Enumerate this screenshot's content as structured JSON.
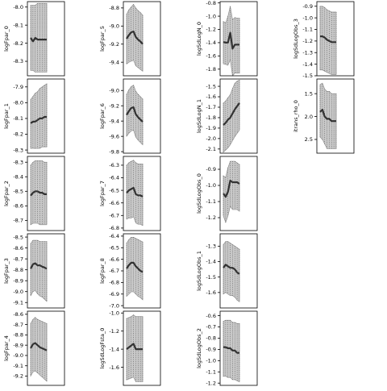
{
  "chart_data": [
    {
      "type": "line",
      "ylabel": "logFpar_0",
      "yticks": [
        -8.0,
        -8.1,
        -8.2,
        -8.3
      ],
      "yticklabels": [
        "-8.0",
        "-8.1",
        "-8.2",
        "-8.3"
      ],
      "ylim": [
        -7.97,
        -8.38
      ],
      "x": [
        1,
        2,
        3,
        4,
        5,
        6,
        7,
        8
      ],
      "series": [
        {
          "values": [
            -8.17,
            -8.19,
            -8.17,
            -8.18,
            -8.18,
            -8.18,
            -8.18,
            -8.18
          ]
        }
      ],
      "band": {
        "upper": [
          -7.99,
          -7.99,
          -7.99,
          -7.98,
          -7.98,
          -7.98,
          -7.98,
          -7.98
        ],
        "lower": [
          -8.35,
          -8.35,
          -8.36,
          -8.36,
          -8.36,
          -8.36,
          -8.36,
          -8.36
        ]
      }
    },
    {
      "type": "line",
      "ylabel": "logFpar_1",
      "yticks": [
        -7.9,
        -8.0,
        -8.1,
        -8.2,
        -8.3
      ],
      "yticklabels": [
        "-7.9",
        "-8.0",
        "-8.1",
        "-8.2",
        "-8.3"
      ],
      "ylim": [
        -7.85,
        -8.32
      ],
      "x": [
        1,
        2,
        3,
        4,
        5,
        6,
        7,
        8
      ],
      "series": [
        {
          "values": [
            -8.13,
            -8.12,
            -8.12,
            -8.11,
            -8.1,
            -8.1,
            -8.09,
            -8.09
          ]
        }
      ],
      "band": {
        "upper": [
          -7.98,
          -7.96,
          -7.94,
          -7.93,
          -7.91,
          -7.9,
          -7.89,
          -7.88
        ],
        "lower": [
          -8.29,
          -8.29,
          -8.29,
          -8.29,
          -8.29,
          -8.28,
          -8.28,
          -8.28
        ]
      }
    },
    {
      "type": "line",
      "ylabel": "logFpar_2",
      "yticks": [
        -8.3,
        -8.4,
        -8.5,
        -8.6,
        -8.7
      ],
      "yticklabels": [
        "-8.3",
        "-8.4",
        "-8.5",
        "-8.6",
        "-8.7"
      ],
      "ylim": [
        -8.26,
        -8.77
      ],
      "x": [
        1,
        2,
        3,
        4,
        5,
        6,
        7,
        8
      ],
      "series": [
        {
          "values": [
            -8.53,
            -8.51,
            -8.5,
            -8.5,
            -8.51,
            -8.51,
            -8.52,
            -8.52
          ]
        }
      ],
      "band": {
        "upper": [
          -8.32,
          -8.3,
          -8.29,
          -8.29,
          -8.29,
          -8.29,
          -8.3,
          -8.3
        ],
        "lower": [
          -8.73,
          -8.72,
          -8.72,
          -8.72,
          -8.73,
          -8.73,
          -8.73,
          -8.73
        ]
      }
    },
    {
      "type": "line",
      "ylabel": "logFpar_3",
      "yticks": [
        -8.5,
        -8.6,
        -8.7,
        -8.8,
        -8.9,
        -9.0,
        -9.1
      ],
      "yticklabels": [
        "-8.5",
        "-8.6",
        "-8.7",
        "-8.8",
        "-8.9",
        "-9.0",
        "-9.1"
      ],
      "ylim": [
        -8.47,
        -9.15
      ],
      "x": [
        1,
        2,
        3,
        4,
        5,
        6,
        7,
        8
      ],
      "series": [
        {
          "values": [
            -8.79,
            -8.75,
            -8.74,
            -8.76,
            -8.76,
            -8.77,
            -8.78,
            -8.79
          ]
        }
      ],
      "band": {
        "upper": [
          -8.56,
          -8.53,
          -8.53,
          -8.53,
          -8.54,
          -8.54,
          -8.54,
          -8.54
        ],
        "lower": [
          -9.04,
          -9.0,
          -8.99,
          -9.02,
          -9.04,
          -9.05,
          -9.07,
          -9.09
        ]
      }
    },
    {
      "type": "line",
      "ylabel": "logFpar_4",
      "yticks": [
        -8.6,
        -8.7,
        -8.8,
        -8.9,
        -9.0,
        -9.1,
        -9.2
      ],
      "yticklabels": [
        "-8.6",
        "-8.7",
        "-8.8",
        "-8.9",
        "-9.0",
        "-9.1",
        "-9.2"
      ],
      "ylim": [
        -8.57,
        -9.29
      ],
      "x": [
        1,
        2,
        3,
        4,
        5,
        6,
        7,
        8
      ],
      "series": [
        {
          "values": [
            -8.93,
            -8.89,
            -8.88,
            -8.9,
            -8.92,
            -8.93,
            -8.94,
            -8.95
          ]
        }
      ],
      "band": {
        "upper": [
          -8.69,
          -8.65,
          -8.63,
          -8.65,
          -8.66,
          -8.67,
          -8.68,
          -8.69
        ],
        "lower": [
          -9.2,
          -9.16,
          -9.15,
          -9.17,
          -9.19,
          -9.21,
          -9.23,
          -9.25
        ]
      }
    },
    {
      "type": "line",
      "ylabel": "logFpar_5",
      "yticks": [
        -8.8,
        -9.0,
        -9.2,
        -9.4
      ],
      "yticklabels": [
        "-8.8",
        "-9.0",
        "-9.2",
        "-9.4"
      ],
      "ylim": [
        -8.73,
        -9.55
      ],
      "x": [
        1,
        2,
        3,
        4,
        5,
        6,
        7,
        8
      ],
      "series": [
        {
          "values": [
            -9.14,
            -9.1,
            -9.07,
            -9.06,
            -9.12,
            -9.15,
            -9.17,
            -9.2
          ]
        }
      ],
      "band": {
        "upper": [
          -8.87,
          -8.82,
          -8.79,
          -8.76,
          -8.8,
          -8.83,
          -8.85,
          -8.88
        ],
        "lower": [
          -9.42,
          -9.4,
          -9.39,
          -9.38,
          -9.44,
          -9.46,
          -9.48,
          -9.5
        ]
      }
    },
    {
      "type": "line",
      "ylabel": "logFpar_6",
      "yticks": [
        -9.0,
        -9.2,
        -9.4,
        -9.6,
        -9.8
      ],
      "yticklabels": [
        "-9.0",
        "-9.2",
        "-9.4",
        "-9.6",
        "-9.8"
      ],
      "ylim": [
        -8.85,
        -9.82
      ],
      "x": [
        1,
        2,
        3,
        4,
        5,
        6,
        7,
        8
      ],
      "series": [
        {
          "values": [
            -9.32,
            -9.27,
            -9.23,
            -9.22,
            -9.31,
            -9.35,
            -9.38,
            -9.41
          ]
        }
      ],
      "band": {
        "upper": [
          -9.05,
          -8.99,
          -8.95,
          -8.93,
          -9.01,
          -9.05,
          -9.08,
          -9.11
        ],
        "lower": [
          -9.6,
          -9.56,
          -9.53,
          -9.52,
          -9.61,
          -9.65,
          -9.68,
          -9.71
        ]
      }
    },
    {
      "type": "line",
      "ylabel": "logFpar_7",
      "yticks": [
        -6.3,
        -6.4,
        -6.5,
        -6.6,
        -6.7,
        -6.8
      ],
      "yticklabels": [
        "-6.3",
        "-6.4",
        "-6.5",
        "-6.6",
        "-6.7",
        "-6.8"
      ],
      "ylim": [
        -6.23,
        -6.82
      ],
      "x": [
        1,
        2,
        3,
        4,
        5,
        6,
        7,
        8
      ],
      "series": [
        {
          "values": [
            -6.52,
            -6.5,
            -6.49,
            -6.48,
            -6.53,
            -6.54,
            -6.54,
            -6.55
          ]
        }
      ],
      "band": {
        "upper": [
          -6.3,
          -6.28,
          -6.27,
          -6.26,
          -6.28,
          -6.29,
          -6.29,
          -6.29
        ],
        "lower": [
          -6.73,
          -6.72,
          -6.72,
          -6.71,
          -6.76,
          -6.77,
          -6.77,
          -6.78
        ]
      }
    },
    {
      "type": "line",
      "ylabel": "logFpar_8",
      "yticks": [
        -6.4,
        -6.5,
        -6.6,
        -6.7,
        -6.8,
        -6.9,
        -7.0
      ],
      "yticklabels": [
        "-6.4",
        "-6.5",
        "-6.6",
        "-6.7",
        "-6.8",
        "-6.9",
        "-7.0"
      ],
      "ylim": [
        -6.38,
        -7.02
      ],
      "x": [
        1,
        2,
        3,
        4,
        5,
        6,
        7,
        8
      ],
      "series": [
        {
          "values": [
            -6.68,
            -6.65,
            -6.63,
            -6.63,
            -6.66,
            -6.68,
            -6.7,
            -6.71
          ]
        }
      ],
      "band": {
        "upper": [
          -6.46,
          -6.43,
          -6.41,
          -6.41,
          -6.42,
          -6.43,
          -6.44,
          -6.45
        ],
        "lower": [
          -6.92,
          -6.9,
          -6.88,
          -6.88,
          -6.9,
          -6.92,
          -6.93,
          -6.95
        ]
      }
    },
    {
      "type": "line",
      "ylabel": "logSdLogFsta_0",
      "yticks": [
        -1.0,
        -1.2,
        -1.4,
        -1.6
      ],
      "yticklabels": [
        "-1.0",
        "-1.2",
        "-1.4",
        "-1.6"
      ],
      "ylim": [
        -0.98,
        -1.8
      ],
      "x": [
        1,
        2,
        3,
        4,
        5,
        6,
        7,
        8
      ],
      "series": [
        {
          "values": [
            -1.4,
            -1.38,
            -1.36,
            -1.34,
            -1.4,
            -1.4,
            -1.4,
            -1.4
          ]
        }
      ],
      "band": {
        "upper": [
          -1.06,
          -1.05,
          -1.04,
          -1.02,
          -1.04,
          -1.04,
          -1.04,
          -1.04
        ],
        "lower": [
          -1.74,
          -1.73,
          -1.72,
          -1.71,
          -1.76,
          -1.76,
          -1.76,
          -1.76
        ]
      }
    },
    {
      "type": "line",
      "ylabel": "logSdLogN_0",
      "yticks": [
        -0.8,
        -1.0,
        -1.2,
        -1.4,
        -1.6,
        -1.8
      ],
      "yticklabels": [
        "-0.8",
        "-1.0",
        "-1.2",
        "-1.4",
        "-1.6",
        "-1.8"
      ],
      "ylim": [
        -0.78,
        -1.9
      ],
      "x": [
        1,
        2,
        3,
        4,
        5,
        6,
        7,
        8
      ],
      "series": [
        {
          "values": [
            -1.39,
            -1.4,
            -1.4,
            -1.25,
            -1.49,
            -1.43,
            -1.43,
            -1.43
          ]
        }
      ],
      "band": {
        "upper": [
          -1.08,
          -1.1,
          -1.0,
          -0.85,
          -1.05,
          -1.02,
          -1.03,
          -1.03
        ],
        "lower": [
          -1.72,
          -1.73,
          -1.74,
          -1.66,
          -1.9,
          -1.86,
          -1.86,
          -1.86
        ]
      }
    },
    {
      "type": "line",
      "ylabel": "logSdLogN_1",
      "yticks": [
        -1.5,
        -1.6,
        -1.7,
        -1.8,
        -1.9,
        -2.0,
        -2.1
      ],
      "yticklabels": [
        "-1.5",
        "-1.6",
        "-1.7",
        "-1.8",
        "-1.9",
        "-2.0",
        "-2.1"
      ],
      "ylim": [
        -1.43,
        -2.14
      ],
      "x": [
        1,
        2,
        3,
        4,
        5,
        6,
        7,
        8
      ],
      "series": [
        {
          "values": [
            -1.87,
            -1.85,
            -1.82,
            -1.8,
            -1.76,
            -1.72,
            -1.69,
            -1.66
          ]
        }
      ],
      "band": {
        "upper": [
          -1.66,
          -1.64,
          -1.61,
          -1.58,
          -1.52,
          -1.47,
          -1.45,
          -1.44
        ],
        "lower": [
          -2.13,
          -2.11,
          -2.09,
          -2.06,
          -2.02,
          -1.98,
          -1.95,
          -1.92
        ]
      }
    },
    {
      "type": "line",
      "ylabel": "logSdLogObs_0",
      "yticks": [
        -0.9,
        -1.0,
        -1.1,
        -1.2
      ],
      "yticklabels": [
        "-0.9",
        "-1.0",
        "-1.1",
        "-1.2"
      ],
      "ylim": [
        -0.82,
        -1.28
      ],
      "x": [
        1,
        2,
        3,
        4,
        5,
        6,
        7,
        8
      ],
      "series": [
        {
          "values": [
            -1.05,
            -1.07,
            -1.04,
            -0.97,
            -0.98,
            -0.98,
            -0.98,
            -0.99
          ]
        }
      ],
      "band": {
        "upper": [
          -0.94,
          -0.95,
          -0.89,
          -0.85,
          -0.85,
          -0.85,
          -0.86,
          -0.87
        ],
        "lower": [
          -1.19,
          -1.23,
          -1.19,
          -1.13,
          -1.15,
          -1.15,
          -1.15,
          -1.16
        ]
      }
    },
    {
      "type": "line",
      "ylabel": "logSdLogObs_1",
      "yticks": [
        -1.3,
        -1.4,
        -1.5,
        -1.6
      ],
      "yticklabels": [
        "-1.3",
        "-1.4",
        "-1.5",
        "-1.6"
      ],
      "ylim": [
        -1.22,
        -1.7
      ],
      "x": [
        1,
        2,
        3,
        4,
        5,
        6,
        7,
        8
      ],
      "series": [
        {
          "values": [
            -1.44,
            -1.42,
            -1.43,
            -1.44,
            -1.44,
            -1.45,
            -1.47,
            -1.48
          ]
        }
      ],
      "band": {
        "upper": [
          -1.29,
          -1.27,
          -1.27,
          -1.28,
          -1.29,
          -1.3,
          -1.31,
          -1.32
        ],
        "lower": [
          -1.61,
          -1.6,
          -1.61,
          -1.62,
          -1.62,
          -1.63,
          -1.65,
          -1.66
        ]
      }
    },
    {
      "type": "line",
      "ylabel": "logSdLogObs_2",
      "yticks": [
        -0.6,
        -0.7,
        -0.8,
        -0.9,
        -1.0,
        -1.1,
        -1.2
      ],
      "yticklabels": [
        "-0.6",
        "-0.7",
        "-0.8",
        "-0.9",
        "-1.0",
        "-1.1",
        "-1.2"
      ],
      "ylim": [
        -0.56,
        -1.22
      ],
      "x": [
        1,
        2,
        3,
        4,
        5,
        6,
        7,
        8
      ],
      "series": [
        {
          "values": [
            -0.88,
            -0.88,
            -0.89,
            -0.89,
            -0.91,
            -0.91,
            -0.93,
            -0.93
          ]
        }
      ],
      "band": {
        "upper": [
          -0.65,
          -0.64,
          -0.64,
          -0.64,
          -0.66,
          -0.66,
          -0.67,
          -0.67
        ],
        "lower": [
          -1.14,
          -1.14,
          -1.15,
          -1.15,
          -1.17,
          -1.17,
          -1.18,
          -1.19
        ]
      }
    },
    {
      "type": "line",
      "ylabel": "logSdLogObs_3",
      "yticks": [
        -0.9,
        -1.0,
        -1.1,
        -1.2,
        -1.3,
        -1.4,
        -1.5
      ],
      "yticklabels": [
        "-0.9",
        "-1.0",
        "-1.1",
        "-1.2",
        "-1.3",
        "-1.4",
        "-1.5"
      ],
      "ylim": [
        -0.86,
        -1.5
      ],
      "x": [
        1,
        2,
        3,
        4,
        5,
        6,
        7,
        8
      ],
      "series": [
        {
          "values": [
            -1.16,
            -1.16,
            -1.17,
            -1.19,
            -1.2,
            -1.21,
            -1.21,
            -1.21
          ]
        }
      ],
      "band": {
        "upper": [
          -0.9,
          -0.9,
          -0.91,
          -0.93,
          -0.94,
          -0.95,
          -0.95,
          -0.95
        ],
        "lower": [
          -1.45,
          -1.45,
          -1.46,
          -1.47,
          -1.48,
          -1.49,
          -1.49,
          -1.49
        ]
      }
    },
    {
      "type": "line",
      "ylabel": "itrans_rho_0",
      "yticks": [
        1.5,
        2.0,
        2.5
      ],
      "yticklabels": [
        "1.5",
        "2.0",
        "2.5"
      ],
      "ylim": [
        1.18,
        2.8
      ],
      "x": [
        1,
        2,
        3,
        4,
        5,
        6,
        7,
        8
      ],
      "series": [
        {
          "values": [
            1.9,
            1.85,
            2.0,
            2.05,
            2.05,
            2.1,
            2.1,
            2.1
          ]
        }
      ],
      "band": {
        "upper": [
          2.45,
          2.5,
          2.6,
          2.7,
          2.7,
          2.7,
          2.7,
          2.7
        ],
        "lower": [
          1.3,
          1.27,
          1.4,
          1.45,
          1.45,
          1.5,
          1.5,
          1.5
        ]
      }
    }
  ]
}
